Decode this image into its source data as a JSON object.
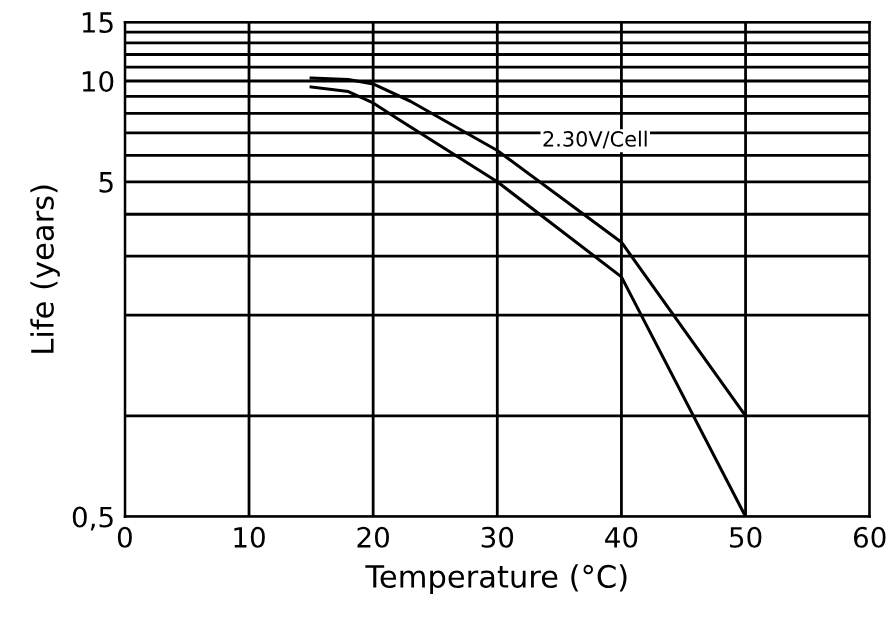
{
  "chart_data": {
    "type": "line",
    "xlabel": "Temperature (°C)",
    "ylabel": "Life (years)",
    "log": "y",
    "grid": true,
    "marker": "none",
    "line_style": "solid",
    "legend": false,
    "xlim": [
      0,
      60
    ],
    "xticks": [
      0,
      10,
      20,
      30,
      40,
      50,
      60
    ],
    "ylim": [
      0.5,
      15
    ],
    "yticks": [
      {
        "value": 0.5,
        "label": "0,5"
      },
      {
        "value": 1,
        "label": null
      },
      {
        "value": 2,
        "label": null
      },
      {
        "value": 3,
        "label": null
      },
      {
        "value": 4,
        "label": null
      },
      5,
      {
        "value": 6,
        "label": null
      },
      {
        "value": 7,
        "label": null
      },
      {
        "value": 8,
        "label": null
      },
      {
        "value": 9,
        "label": null
      },
      10,
      {
        "value": 11,
        "label": null
      },
      {
        "value": 12,
        "label": null
      },
      {
        "value": 13,
        "label": null
      },
      {
        "value": 14,
        "label": null
      },
      15
    ],
    "series": [
      {
        "color": "#000000",
        "x": [
          15,
          18,
          20,
          23,
          30,
          40,
          50
        ],
        "values": [
          10.2,
          10.1,
          9.8,
          8.7,
          6.2,
          3.3,
          1.0
        ]
      },
      {
        "color": "#000000",
        "x": [
          15,
          18,
          20,
          22,
          30,
          40,
          50
        ],
        "values": [
          9.6,
          9.3,
          8.6,
          7.7,
          5.0,
          2.6,
          0.5
        ]
      }
    ],
    "annotations": [
      "2.30V/Cell"
    ]
  }
}
